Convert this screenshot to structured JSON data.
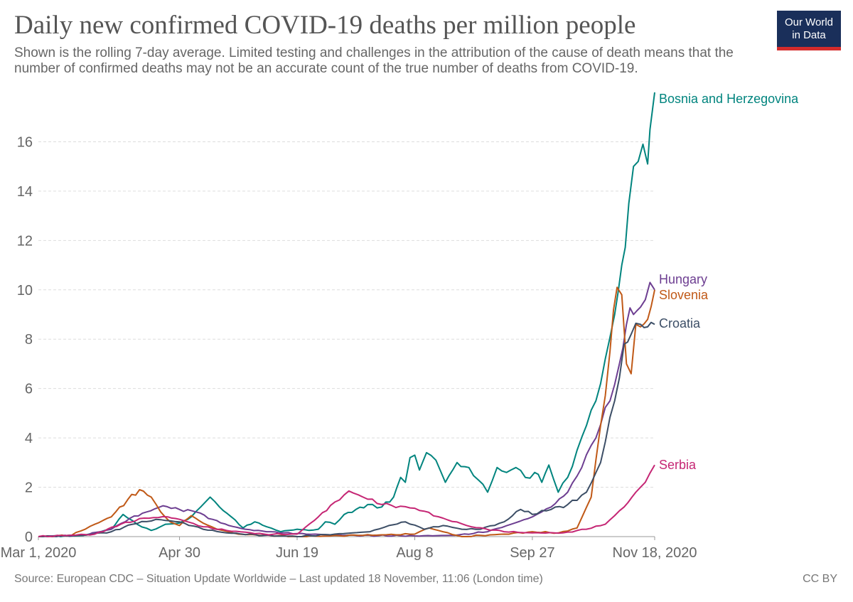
{
  "header": {
    "title": "Daily new confirmed COVID-19 deaths per million people",
    "subtitle": "Shown is the rolling 7-day average. Limited testing and challenges in the attribution of the cause of death means that the number of confirmed deaths may not be an accurate count of the true number of deaths from COVID-19.",
    "logo_line1": "Our World",
    "logo_line2": "in Data"
  },
  "footer": {
    "source": "Source: European CDC – Situation Update Worldwide – Last updated 18 November, 11:06 (London time)",
    "license": "CC BY"
  },
  "colors": {
    "bosnia": "#00847e",
    "hungary": "#6d3e91",
    "slovenia": "#c05917",
    "croatia": "#3c4e66",
    "serbia": "#c52674"
  },
  "chart_data": {
    "type": "line",
    "x_ticks": [
      "Mar 1, 2020",
      "Apr 30",
      "Jun 19",
      "Aug 8",
      "Sep 27",
      "Nov 18, 2020"
    ],
    "x_tick_dates": [
      "2020-03-01",
      "2020-04-30",
      "2020-06-19",
      "2020-08-08",
      "2020-09-27",
      "2020-11-18"
    ],
    "x_range": [
      "2020-03-01",
      "2020-11-18"
    ],
    "y_ticks": [
      0,
      2,
      4,
      6,
      8,
      10,
      12,
      14,
      16
    ],
    "y_range": [
      0,
      18
    ],
    "grid": "horizontal dashed",
    "legend": "labels at line ends (right)",
    "series": [
      {
        "name": "Bosnia and Herzegovina",
        "color": "#00847e",
        "points": [
          [
            "2020-03-01",
            0
          ],
          [
            "2020-03-20",
            0.05
          ],
          [
            "2020-04-01",
            0.3
          ],
          [
            "2020-04-06",
            0.9
          ],
          [
            "2020-04-12",
            0.5
          ],
          [
            "2020-04-18",
            0.25
          ],
          [
            "2020-04-24",
            0.5
          ],
          [
            "2020-04-30",
            0.55
          ],
          [
            "2020-05-05",
            0.8
          ],
          [
            "2020-05-09",
            1.2
          ],
          [
            "2020-05-13",
            1.6
          ],
          [
            "2020-05-17",
            1.2
          ],
          [
            "2020-05-22",
            0.8
          ],
          [
            "2020-05-27",
            0.35
          ],
          [
            "2020-06-01",
            0.6
          ],
          [
            "2020-06-06",
            0.4
          ],
          [
            "2020-06-12",
            0.2
          ],
          [
            "2020-06-19",
            0.3
          ],
          [
            "2020-06-24",
            0.25
          ],
          [
            "2020-06-28",
            0.3
          ],
          [
            "2020-07-01",
            0.6
          ],
          [
            "2020-07-05",
            0.5
          ],
          [
            "2020-07-09",
            0.9
          ],
          [
            "2020-07-14",
            1.1
          ],
          [
            "2020-07-19",
            1.3
          ],
          [
            "2020-07-25",
            1.2
          ],
          [
            "2020-07-30",
            1.6
          ],
          [
            "2020-08-02",
            2.4
          ],
          [
            "2020-08-04",
            2.2
          ],
          [
            "2020-08-06",
            3.2
          ],
          [
            "2020-08-08",
            3.3
          ],
          [
            "2020-08-10",
            2.7
          ],
          [
            "2020-08-13",
            3.4
          ],
          [
            "2020-08-17",
            3.1
          ],
          [
            "2020-08-21",
            2.2
          ],
          [
            "2020-08-26",
            3.0
          ],
          [
            "2020-08-31",
            2.8
          ],
          [
            "2020-09-04",
            2.3
          ],
          [
            "2020-09-08",
            1.8
          ],
          [
            "2020-09-12",
            2.8
          ],
          [
            "2020-09-16",
            2.6
          ],
          [
            "2020-09-20",
            2.8
          ],
          [
            "2020-09-24",
            2.4
          ],
          [
            "2020-09-28",
            2.6
          ],
          [
            "2020-10-01",
            2.2
          ],
          [
            "2020-10-04",
            2.9
          ],
          [
            "2020-10-08",
            1.8
          ],
          [
            "2020-10-12",
            2.4
          ],
          [
            "2020-10-16",
            3.5
          ],
          [
            "2020-10-20",
            4.5
          ],
          [
            "2020-10-24",
            5.5
          ],
          [
            "2020-10-28",
            7.2
          ],
          [
            "2020-11-01",
            9.0
          ],
          [
            "2020-11-04",
            11.0
          ],
          [
            "2020-11-07",
            13.5
          ],
          [
            "2020-11-09",
            15.0
          ],
          [
            "2020-11-11",
            15.2
          ],
          [
            "2020-11-13",
            15.9
          ],
          [
            "2020-11-15",
            15.1
          ],
          [
            "2020-11-16",
            16.5
          ],
          [
            "2020-11-18",
            18.0
          ]
        ]
      },
      {
        "name": "Hungary",
        "color": "#6d3e91",
        "points": [
          [
            "2020-03-01",
            0
          ],
          [
            "2020-03-20",
            0.05
          ],
          [
            "2020-04-01",
            0.3
          ],
          [
            "2020-04-09",
            0.75
          ],
          [
            "2020-04-16",
            1.0
          ],
          [
            "2020-04-23",
            1.25
          ],
          [
            "2020-04-30",
            1.1
          ],
          [
            "2020-05-07",
            1.0
          ],
          [
            "2020-05-14",
            0.7
          ],
          [
            "2020-05-21",
            0.45
          ],
          [
            "2020-05-28",
            0.3
          ],
          [
            "2020-06-06",
            0.2
          ],
          [
            "2020-06-19",
            0.12
          ],
          [
            "2020-07-10",
            0.05
          ],
          [
            "2020-08-08",
            0.03
          ],
          [
            "2020-08-25",
            0.05
          ],
          [
            "2020-09-08",
            0.2
          ],
          [
            "2020-09-18",
            0.5
          ],
          [
            "2020-09-27",
            0.8
          ],
          [
            "2020-10-05",
            1.2
          ],
          [
            "2020-10-12",
            1.8
          ],
          [
            "2020-10-18",
            2.8
          ],
          [
            "2020-10-24",
            4.0
          ],
          [
            "2020-10-30",
            5.5
          ],
          [
            "2020-11-03",
            7.0
          ],
          [
            "2020-11-06",
            8.6
          ],
          [
            "2020-11-09",
            9.0
          ],
          [
            "2020-11-12",
            9.3
          ],
          [
            "2020-11-14",
            9.6
          ],
          [
            "2020-11-16",
            10.3
          ],
          [
            "2020-11-18",
            10.0
          ]
        ]
      },
      {
        "name": "Slovenia",
        "color": "#c05917",
        "points": [
          [
            "2020-03-01",
            0
          ],
          [
            "2020-03-15",
            0.05
          ],
          [
            "2020-03-25",
            0.5
          ],
          [
            "2020-04-01",
            0.8
          ],
          [
            "2020-04-08",
            1.5
          ],
          [
            "2020-04-13",
            1.9
          ],
          [
            "2020-04-18",
            1.6
          ],
          [
            "2020-04-22",
            1.0
          ],
          [
            "2020-04-26",
            0.6
          ],
          [
            "2020-04-30",
            0.45
          ],
          [
            "2020-05-05",
            0.85
          ],
          [
            "2020-05-10",
            0.55
          ],
          [
            "2020-05-16",
            0.3
          ],
          [
            "2020-05-25",
            0.1
          ],
          [
            "2020-06-19",
            0
          ],
          [
            "2020-07-15",
            0.05
          ],
          [
            "2020-08-08",
            0.1
          ],
          [
            "2020-08-14",
            0.35
          ],
          [
            "2020-08-20",
            0.2
          ],
          [
            "2020-08-28",
            0
          ],
          [
            "2020-09-15",
            0.1
          ],
          [
            "2020-09-27",
            0.2
          ],
          [
            "2020-10-08",
            0.15
          ],
          [
            "2020-10-16",
            0.35
          ],
          [
            "2020-10-22",
            1.6
          ],
          [
            "2020-10-26",
            4.5
          ],
          [
            "2020-10-30",
            7.5
          ],
          [
            "2020-11-02",
            10.1
          ],
          [
            "2020-11-04",
            9.8
          ],
          [
            "2020-11-06",
            7.0
          ],
          [
            "2020-11-08",
            6.6
          ],
          [
            "2020-11-10",
            8.6
          ],
          [
            "2020-11-12",
            8.5
          ],
          [
            "2020-11-15",
            8.8
          ],
          [
            "2020-11-18",
            10.0
          ]
        ]
      },
      {
        "name": "Croatia",
        "color": "#3c4e66",
        "points": [
          [
            "2020-03-01",
            0
          ],
          [
            "2020-03-20",
            0.05
          ],
          [
            "2020-04-01",
            0.2
          ],
          [
            "2020-04-10",
            0.5
          ],
          [
            "2020-04-20",
            0.7
          ],
          [
            "2020-04-30",
            0.6
          ],
          [
            "2020-05-10",
            0.3
          ],
          [
            "2020-05-20",
            0.15
          ],
          [
            "2020-06-05",
            0.05
          ],
          [
            "2020-06-19",
            0
          ],
          [
            "2020-07-05",
            0.1
          ],
          [
            "2020-07-20",
            0.2
          ],
          [
            "2020-07-28",
            0.45
          ],
          [
            "2020-08-04",
            0.6
          ],
          [
            "2020-08-12",
            0.3
          ],
          [
            "2020-08-20",
            0.45
          ],
          [
            "2020-08-28",
            0.3
          ],
          [
            "2020-09-05",
            0.3
          ],
          [
            "2020-09-15",
            0.6
          ],
          [
            "2020-09-22",
            1.1
          ],
          [
            "2020-09-27",
            0.9
          ],
          [
            "2020-10-05",
            1.1
          ],
          [
            "2020-10-12",
            1.3
          ],
          [
            "2020-10-20",
            1.8
          ],
          [
            "2020-10-26",
            3.0
          ],
          [
            "2020-11-01",
            5.5
          ],
          [
            "2020-11-05",
            7.8
          ],
          [
            "2020-11-08",
            8.2
          ],
          [
            "2020-11-12",
            8.6
          ],
          [
            "2020-11-15",
            8.5
          ],
          [
            "2020-11-18",
            8.6
          ]
        ]
      },
      {
        "name": "Serbia",
        "color": "#c52674",
        "points": [
          [
            "2020-03-01",
            0
          ],
          [
            "2020-03-25",
            0.1
          ],
          [
            "2020-04-05",
            0.5
          ],
          [
            "2020-04-15",
            0.75
          ],
          [
            "2020-04-25",
            0.8
          ],
          [
            "2020-04-30",
            0.7
          ],
          [
            "2020-05-10",
            0.4
          ],
          [
            "2020-05-20",
            0.25
          ],
          [
            "2020-06-05",
            0.1
          ],
          [
            "2020-06-19",
            0.1
          ],
          [
            "2020-06-28",
            0.8
          ],
          [
            "2020-07-05",
            1.4
          ],
          [
            "2020-07-11",
            1.85
          ],
          [
            "2020-07-17",
            1.6
          ],
          [
            "2020-07-25",
            1.3
          ],
          [
            "2020-08-08",
            1.15
          ],
          [
            "2020-08-20",
            0.75
          ],
          [
            "2020-09-01",
            0.4
          ],
          [
            "2020-09-15",
            0.2
          ],
          [
            "2020-09-27",
            0.15
          ],
          [
            "2020-10-10",
            0.15
          ],
          [
            "2020-10-20",
            0.3
          ],
          [
            "2020-10-28",
            0.5
          ],
          [
            "2020-11-05",
            1.2
          ],
          [
            "2020-11-10",
            1.8
          ],
          [
            "2020-11-14",
            2.2
          ],
          [
            "2020-11-18",
            2.9
          ]
        ]
      }
    ]
  }
}
